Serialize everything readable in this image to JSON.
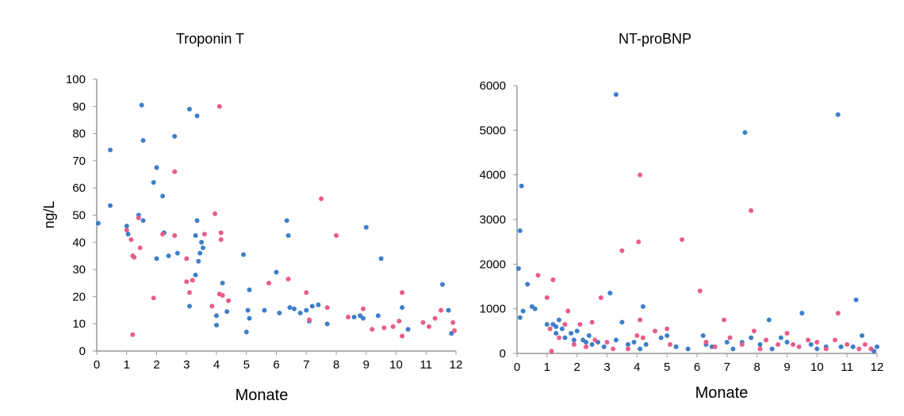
{
  "chart_data": [
    {
      "type": "scatter",
      "title": "Troponin T",
      "xlabel": "Monate",
      "ylabel": "ng/L",
      "xlim": [
        0,
        12
      ],
      "ylim": [
        0,
        100
      ],
      "x_ticks": [
        0,
        1,
        2,
        3,
        4,
        5,
        6,
        7,
        8,
        9,
        10,
        11,
        12
      ],
      "y_ticks": [
        0,
        10,
        20,
        30,
        40,
        50,
        60,
        70,
        80,
        90,
        100
      ],
      "grid": false,
      "legend": "none",
      "series": [
        {
          "color": "#3d7fc9",
          "points": [
            [
              0.05,
              47
            ],
            [
              0.45,
              53.5
            ],
            [
              0.45,
              74
            ],
            [
              1.0,
              46
            ],
            [
              1.05,
              43
            ],
            [
              1.4,
              50
            ],
            [
              1.5,
              90.5
            ],
            [
              1.55,
              77.5
            ],
            [
              1.55,
              48
            ],
            [
              1.9,
              62
            ],
            [
              2.0,
              67.5
            ],
            [
              2.0,
              34
            ],
            [
              2.2,
              57
            ],
            [
              2.25,
              43.5
            ],
            [
              2.4,
              35
            ],
            [
              2.6,
              79
            ],
            [
              2.7,
              36
            ],
            [
              3.1,
              89
            ],
            [
              3.35,
              86.5
            ],
            [
              3.3,
              42.5
            ],
            [
              3.35,
              48
            ],
            [
              3.45,
              36
            ],
            [
              3.4,
              33
            ],
            [
              3.5,
              40
            ],
            [
              3.1,
              16.5
            ],
            [
              3.3,
              28
            ],
            [
              3.55,
              38
            ],
            [
              4.0,
              13
            ],
            [
              4.0,
              9.5
            ],
            [
              4.2,
              25
            ],
            [
              4.35,
              14.5
            ],
            [
              4.9,
              35.5
            ],
            [
              5.0,
              7
            ],
            [
              5.05,
              15
            ],
            [
              5.1,
              22.5
            ],
            [
              5.1,
              12
            ],
            [
              5.6,
              15
            ],
            [
              6.0,
              29
            ],
            [
              6.1,
              14
            ],
            [
              6.35,
              48
            ],
            [
              6.4,
              42.5
            ],
            [
              6.45,
              16
            ],
            [
              6.6,
              15.5
            ],
            [
              6.8,
              14
            ],
            [
              7.0,
              15
            ],
            [
              7.1,
              11
            ],
            [
              7.2,
              16.5
            ],
            [
              7.4,
              17
            ],
            [
              7.7,
              10
            ],
            [
              8.6,
              12.5
            ],
            [
              8.8,
              13
            ],
            [
              8.9,
              12
            ],
            [
              9.0,
              45.5
            ],
            [
              9.5,
              34
            ],
            [
              9.4,
              13
            ],
            [
              10.2,
              16
            ],
            [
              10.4,
              8
            ],
            [
              11.55,
              24.5
            ],
            [
              11.75,
              15
            ],
            [
              11.85,
              6.5
            ]
          ]
        },
        {
          "color": "#e85d8a",
          "points": [
            [
              1.0,
              44.5
            ],
            [
              1.15,
              41
            ],
            [
              1.2,
              35
            ],
            [
              1.25,
              34.5
            ],
            [
              1.2,
              6
            ],
            [
              1.4,
              49
            ],
            [
              1.45,
              38
            ],
            [
              1.9,
              19.5
            ],
            [
              2.2,
              43
            ],
            [
              2.6,
              42.5
            ],
            [
              2.6,
              66
            ],
            [
              3.0,
              34
            ],
            [
              3.0,
              25.5
            ],
            [
              3.1,
              21.5
            ],
            [
              3.2,
              26
            ],
            [
              3.6,
              43
            ],
            [
              3.85,
              16.5
            ],
            [
              3.95,
              50.5
            ],
            [
              4.1,
              90
            ],
            [
              4.15,
              43.5
            ],
            [
              4.15,
              41
            ],
            [
              4.1,
              21
            ],
            [
              4.2,
              20.5
            ],
            [
              4.4,
              18.5
            ],
            [
              5.75,
              25
            ],
            [
              6.4,
              26.5
            ],
            [
              7.0,
              21.5
            ],
            [
              7.1,
              11.5
            ],
            [
              7.5,
              56
            ],
            [
              7.7,
              16
            ],
            [
              8.0,
              42.5
            ],
            [
              8.4,
              12.5
            ],
            [
              8.9,
              15.5
            ],
            [
              9.2,
              8
            ],
            [
              9.6,
              8.5
            ],
            [
              9.9,
              9
            ],
            [
              10.1,
              11
            ],
            [
              10.2,
              21.5
            ],
            [
              10.2,
              5.5
            ],
            [
              10.9,
              10.5
            ],
            [
              11.1,
              9
            ],
            [
              11.3,
              12
            ],
            [
              11.5,
              15
            ],
            [
              11.9,
              10.5
            ],
            [
              11.95,
              7.5
            ]
          ]
        }
      ]
    },
    {
      "type": "scatter",
      "title": "NT-proBNP",
      "xlabel": "Monate",
      "ylabel": "",
      "xlim": [
        0,
        12
      ],
      "ylim": [
        0,
        6000
      ],
      "x_ticks": [
        0,
        1,
        2,
        3,
        4,
        5,
        6,
        7,
        8,
        9,
        10,
        11,
        12
      ],
      "y_ticks": [
        0,
        1000,
        2000,
        3000,
        4000,
        5000,
        6000
      ],
      "grid": false,
      "legend": "none",
      "series": [
        {
          "color": "#3d7fc9",
          "points": [
            [
              0.05,
              1900
            ],
            [
              0.1,
              2750
            ],
            [
              0.15,
              3750
            ],
            [
              0.1,
              800
            ],
            [
              0.2,
              950
            ],
            [
              0.35,
              1550
            ],
            [
              0.5,
              1050
            ],
            [
              0.6,
              1000
            ],
            [
              1.0,
              650
            ],
            [
              1.2,
              650
            ],
            [
              1.3,
              600
            ],
            [
              1.3,
              450
            ],
            [
              1.4,
              750
            ],
            [
              1.5,
              550
            ],
            [
              1.6,
              350
            ],
            [
              1.8,
              450
            ],
            [
              1.9,
              300
            ],
            [
              2.0,
              500
            ],
            [
              2.2,
              300
            ],
            [
              2.3,
              250
            ],
            [
              2.4,
              400
            ],
            [
              2.5,
              200
            ],
            [
              2.7,
              250
            ],
            [
              2.9,
              150
            ],
            [
              3.1,
              1350
            ],
            [
              3.3,
              5800
            ],
            [
              3.3,
              300
            ],
            [
              3.5,
              700
            ],
            [
              3.7,
              200
            ],
            [
              3.9,
              250
            ],
            [
              4.1,
              100
            ],
            [
              4.2,
              1050
            ],
            [
              4.3,
              200
            ],
            [
              4.8,
              350
            ],
            [
              5.0,
              400
            ],
            [
              5.3,
              150
            ],
            [
              5.7,
              100
            ],
            [
              6.2,
              400
            ],
            [
              6.3,
              200
            ],
            [
              6.5,
              150
            ],
            [
              7.0,
              250
            ],
            [
              7.2,
              100
            ],
            [
              7.5,
              250
            ],
            [
              7.6,
              4950
            ],
            [
              7.8,
              350
            ],
            [
              8.1,
              200
            ],
            [
              8.4,
              750
            ],
            [
              8.5,
              100
            ],
            [
              8.8,
              350
            ],
            [
              9.0,
              250
            ],
            [
              9.5,
              900
            ],
            [
              9.8,
              200
            ],
            [
              10.0,
              100
            ],
            [
              10.3,
              150
            ],
            [
              10.7,
              5350
            ],
            [
              10.8,
              150
            ],
            [
              11.2,
              150
            ],
            [
              11.3,
              1200
            ],
            [
              11.5,
              400
            ],
            [
              11.8,
              100
            ],
            [
              11.9,
              50
            ],
            [
              12.0,
              150
            ]
          ]
        },
        {
          "color": "#e85d8a",
          "points": [
            [
              0.7,
              1750
            ],
            [
              1.0,
              1250
            ],
            [
              1.1,
              550
            ],
            [
              1.2,
              1650
            ],
            [
              1.15,
              50
            ],
            [
              1.4,
              350
            ],
            [
              1.6,
              650
            ],
            [
              1.7,
              950
            ],
            [
              1.9,
              200
            ],
            [
              2.1,
              650
            ],
            [
              2.3,
              150
            ],
            [
              2.5,
              700
            ],
            [
              2.6,
              300
            ],
            [
              2.8,
              1250
            ],
            [
              3.0,
              250
            ],
            [
              3.2,
              100
            ],
            [
              3.5,
              2300
            ],
            [
              3.7,
              100
            ],
            [
              4.0,
              400
            ],
            [
              4.05,
              2500
            ],
            [
              4.1,
              4000
            ],
            [
              4.1,
              750
            ],
            [
              4.2,
              350
            ],
            [
              4.6,
              500
            ],
            [
              5.0,
              550
            ],
            [
              5.1,
              200
            ],
            [
              5.5,
              2550
            ],
            [
              6.1,
              1400
            ],
            [
              6.3,
              250
            ],
            [
              6.6,
              150
            ],
            [
              6.9,
              750
            ],
            [
              7.1,
              350
            ],
            [
              7.5,
              200
            ],
            [
              7.8,
              3200
            ],
            [
              7.9,
              500
            ],
            [
              8.1,
              100
            ],
            [
              8.3,
              300
            ],
            [
              8.7,
              200
            ],
            [
              9.0,
              450
            ],
            [
              9.2,
              200
            ],
            [
              9.4,
              150
            ],
            [
              9.7,
              300
            ],
            [
              10.0,
              250
            ],
            [
              10.3,
              100
            ],
            [
              10.6,
              300
            ],
            [
              10.7,
              900
            ],
            [
              11.0,
              200
            ],
            [
              11.4,
              100
            ],
            [
              11.6,
              200
            ],
            [
              11.8,
              100
            ]
          ]
        }
      ]
    }
  ]
}
